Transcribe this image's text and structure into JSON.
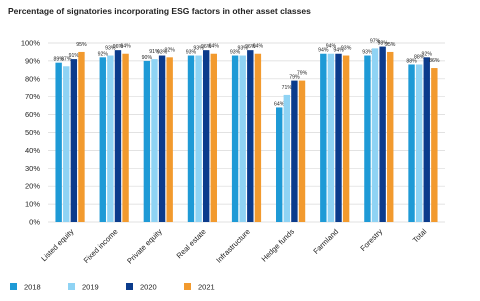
{
  "chart_data": {
    "type": "bar",
    "title": "Percentage of signatories incorporating ESG factors in other asset classes",
    "categories": [
      "Listed equity",
      "Fixed income",
      "Private equity",
      "Real estate",
      "Infrastructure",
      "Hedge funds",
      "Farmland",
      "Forestry",
      "Total"
    ],
    "series": [
      {
        "name": "2018",
        "color": "#1e9ad6",
        "values": [
          89,
          92,
          90,
          93,
          93,
          64,
          94,
          93,
          88
        ],
        "value_labels": [
          "89%",
          "92%",
          "90%",
          "93%",
          "93%",
          "64%",
          "94%",
          "93%",
          "88%"
        ]
      },
      {
        "name": "2019",
        "color": "#8fd3f4",
        "values": [
          87,
          93,
          91,
          93,
          93,
          71,
          94,
          97,
          88
        ],
        "value_labels": [
          "87%",
          "93%",
          "91%",
          "93%",
          "93%",
          "71%",
          "94%",
          "97%",
          "88%"
        ]
      },
      {
        "name": "2020",
        "color": "#0b3b8c",
        "values": [
          91,
          96,
          93,
          96,
          96,
          79,
          94,
          98,
          92
        ],
        "value_labels": [
          "91%",
          "96%",
          "93%",
          "96%",
          "96%",
          "79%",
          "94%",
          "98%",
          "92%"
        ]
      },
      {
        "name": "2021",
        "color": "#f29a2e",
        "values": [
          95,
          94,
          92,
          94,
          94,
          79,
          93,
          95,
          86
        ],
        "value_labels": [
          "95%",
          "94%",
          "92%",
          "94%",
          "94%",
          "79%",
          "93%",
          "95%",
          "86%"
        ]
      }
    ],
    "ylim": [
      0,
      100
    ],
    "yticks": [
      {
        "value": 0,
        "label": "0%"
      },
      {
        "value": 10,
        "label": "10%"
      },
      {
        "value": 20,
        "label": "20%"
      },
      {
        "value": 30,
        "label": "30%"
      },
      {
        "value": 40,
        "label": "40%"
      },
      {
        "value": 50,
        "label": "50%"
      },
      {
        "value": 60,
        "label": "60%"
      },
      {
        "value": 70,
        "label": "70%"
      },
      {
        "value": 80,
        "label": "80%"
      },
      {
        "value": 90,
        "label": "90%"
      },
      {
        "value": 100,
        "label": "100%"
      }
    ],
    "grid": true,
    "legend": "bottom-left"
  }
}
